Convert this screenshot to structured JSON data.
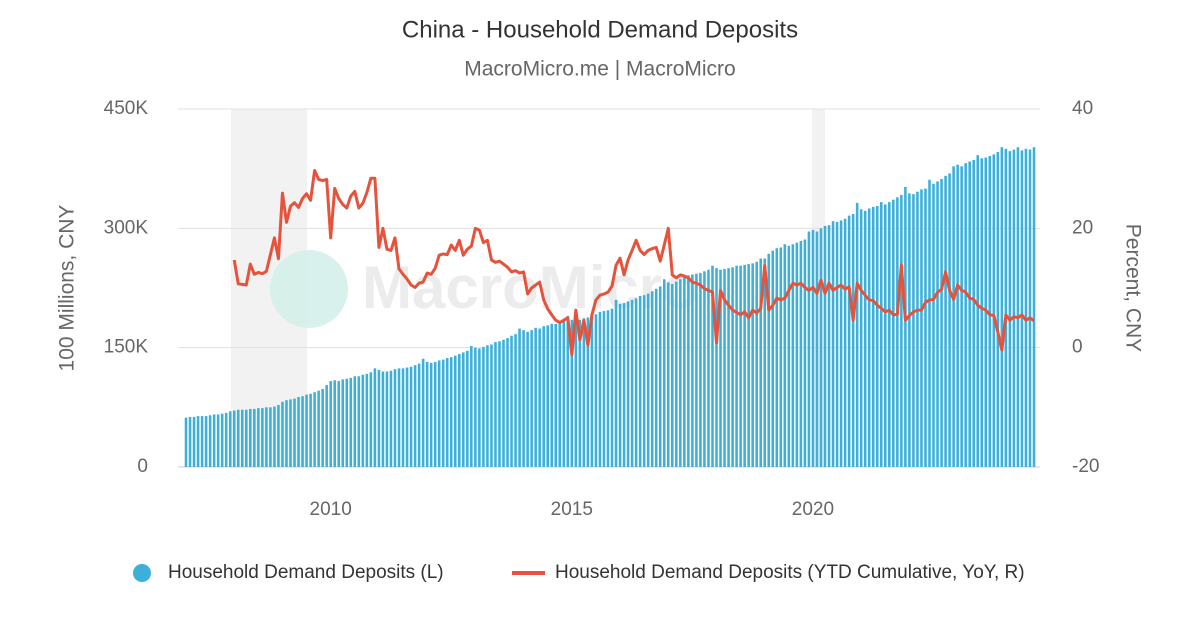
{
  "chart_data": {
    "type": "bar",
    "title": "China - Household Demand Deposits",
    "subtitle": "MacroMicro.me | MacroMicro",
    "watermark": "MacroMicro",
    "y_label": "100 Millions, CNY",
    "y2_label": "Percent, CNY",
    "ylim": [
      0,
      450000
    ],
    "yticks": [
      0,
      {
        "value": 150000,
        "label": "150K"
      },
      {
        "value": 300000,
        "label": "300K"
      },
      {
        "value": 450000,
        "label": "450K"
      }
    ],
    "y2lim": [
      -20,
      40
    ],
    "y2ticks": [
      -20,
      0,
      20,
      40
    ],
    "grid": true,
    "categories": [
      null,
      null,
      null,
      null,
      null,
      null,
      null,
      null,
      null,
      null,
      null,
      null,
      null,
      null,
      null,
      null,
      null,
      null,
      null,
      null,
      null,
      null,
      null,
      null,
      null,
      null,
      null,
      null,
      null,
      null,
      null,
      null,
      null,
      null,
      null,
      null,
      "2010",
      null,
      null,
      null,
      null,
      null,
      null,
      null,
      null,
      null,
      null,
      null,
      null,
      null,
      null,
      null,
      null,
      null,
      null,
      null,
      null,
      null,
      null,
      null,
      null,
      null,
      null,
      null,
      null,
      null,
      null,
      null,
      null,
      null,
      null,
      null,
      null,
      null,
      null,
      null,
      null,
      null,
      null,
      null,
      null,
      null,
      null,
      null,
      null,
      null,
      null,
      null,
      null,
      null,
      null,
      null,
      null,
      null,
      null,
      null,
      "2015",
      null,
      null,
      null,
      null,
      null,
      null,
      null,
      null,
      null,
      null,
      null,
      null,
      null,
      null,
      null,
      null,
      null,
      null,
      null,
      null,
      null,
      null,
      null,
      null,
      null,
      null,
      null,
      null,
      null,
      null,
      null,
      null,
      null,
      null,
      null,
      null,
      null,
      null,
      null,
      null,
      null,
      null,
      null,
      null,
      null,
      null,
      null,
      null,
      null,
      null,
      null,
      null,
      null,
      null,
      null,
      null,
      null,
      null,
      null,
      "2020",
      null,
      null,
      null,
      null,
      null,
      null,
      null,
      null,
      null,
      null,
      null,
      null,
      null,
      null,
      null,
      null,
      null,
      null,
      null,
      null,
      null,
      null,
      null,
      null,
      null,
      null,
      null,
      null,
      null,
      null,
      null,
      null,
      null,
      null,
      null,
      null,
      null,
      null,
      null,
      null,
      null,
      null,
      null,
      null,
      null,
      null,
      null,
      null,
      null,
      null,
      null,
      null,
      null,
      null,
      null
    ],
    "series": [
      {
        "name": "Household Demand Deposits (L)",
        "type": "bar",
        "axis": "y",
        "color": "#3eb0d8",
        "values": [
          62000,
          63000,
          63000,
          64000,
          64000,
          64000,
          65000,
          66000,
          66000,
          67000,
          68000,
          70000,
          71000,
          72000,
          72000,
          72000,
          73000,
          73000,
          74000,
          74000,
          75000,
          75000,
          76000,
          78000,
          82000,
          84000,
          85000,
          86000,
          88000,
          89000,
          91000,
          92000,
          94000,
          96000,
          98000,
          103000,
          108000,
          109000,
          108000,
          110000,
          111000,
          112000,
          114000,
          114000,
          116000,
          117000,
          119000,
          124000,
          122000,
          120000,
          120000,
          121000,
          123000,
          124000,
          124000,
          125000,
          126000,
          128000,
          130000,
          136000,
          132000,
          131000,
          132000,
          134000,
          135000,
          137000,
          138000,
          140000,
          142000,
          144000,
          146000,
          152000,
          150000,
          149000,
          151000,
          153000,
          154000,
          157000,
          158000,
          160000,
          162000,
          165000,
          167000,
          174000,
          172000,
          170000,
          172000,
          175000,
          174000,
          177000,
          178000,
          180000,
          180000,
          182000,
          184000,
          190000,
          185000,
          183000,
          185000,
          187000,
          188000,
          193000,
          192000,
          195000,
          196000,
          197000,
          199000,
          210000,
          205000,
          206000,
          208000,
          210000,
          212000,
          215000,
          216000,
          218000,
          221000,
          224000,
          227000,
          236000,
          232000,
          230000,
          233000,
          236000,
          238000,
          241000,
          242000,
          243000,
          244000,
          246000,
          248000,
          253000,
          250000,
          248000,
          249000,
          250000,
          251000,
          253000,
          253000,
          254000,
          255000,
          256000,
          258000,
          262000,
          262000,
          268000,
          272000,
          275000,
          276000,
          280000,
          278000,
          280000,
          282000,
          284000,
          286000,
          296000,
          298000,
          296000,
          300000,
          303000,
          304000,
          309000,
          308000,
          310000,
          312000,
          316000,
          318000,
          332000,
          324000,
          322000,
          325000,
          327000,
          328000,
          333000,
          330000,
          333000,
          336000,
          339000,
          342000,
          352000,
          344000,
          343000,
          346000,
          349000,
          350000,
          361000,
          356000,
          359000,
          362000,
          366000,
          369000,
          378000,
          380000,
          378000,
          382000,
          384000,
          386000,
          392000,
          388000,
          389000,
          391000,
          393000,
          396000,
          402000,
          400000,
          397000,
          399000,
          402000,
          398000,
          400000,
          399000,
          402000
        ]
      },
      {
        "name": "Household Demand Deposits (YTD Cumulative, YoY, R)",
        "type": "line",
        "axis": "y2",
        "color": "#e5533c",
        "values": [
          null,
          null,
          null,
          null,
          null,
          null,
          null,
          null,
          null,
          null,
          null,
          null,
          14.7,
          10.7,
          10.6,
          10.5,
          14.0,
          12.3,
          12.6,
          12.4,
          12.8,
          15.6,
          18.4,
          14.9,
          25.9,
          21.0,
          23.7,
          24.3,
          23.5,
          25.0,
          25.8,
          24.7,
          29.7,
          28.2,
          28.0,
          28.2,
          18.4,
          26.7,
          25.0,
          24.0,
          23.4,
          25.4,
          26.2,
          23.4,
          24.2,
          26.0,
          28.4,
          28.4,
          16.8,
          20.0,
          16.5,
          16.3,
          18.4,
          13.2,
          12.3,
          11.5,
          10.5,
          10.1,
          10.8,
          11.0,
          12.5,
          12.3,
          13.3,
          15.5,
          15.7,
          15.6,
          17.2,
          16.3,
          18.0,
          15.5,
          16.5,
          17.0,
          20.0,
          19.7,
          17.6,
          18.0,
          14.7,
          14.3,
          14.5,
          14.0,
          13.5,
          12.7,
          12.9,
          12.5,
          12.7,
          9.0,
          10.0,
          10.5,
          11.0,
          8.0,
          6.5,
          5.5,
          4.6,
          4.2,
          4.6,
          5.0,
          -1.2,
          6.3,
          1.3,
          4.6,
          0.4,
          5.5,
          8.0,
          8.8,
          9.0,
          9.3,
          10.3,
          13.8,
          15.0,
          12.2,
          14.7,
          16.3,
          18.0,
          16.3,
          15.6,
          16.3,
          16.6,
          16.8,
          14.5,
          17.2,
          20.0,
          12.2,
          11.7,
          12.2,
          12.0,
          11.7,
          11.0,
          10.8,
          10.5,
          9.9,
          9.6,
          9.3,
          0.8,
          9.6,
          8.0,
          7.1,
          6.3,
          5.9,
          5.5,
          6.0,
          5.0,
          6.3,
          5.8,
          6.6,
          13.8,
          6.3,
          7.1,
          8.3,
          8.0,
          8.3,
          9.6,
          10.8,
          10.5,
          10.8,
          10.1,
          9.6,
          10.1,
          9.1,
          11.3,
          9.1,
          10.8,
          9.6,
          10.1,
          10.5,
          9.8,
          10.2,
          4.6,
          10.8,
          9.6,
          8.8,
          8.0,
          7.9,
          7.1,
          6.6,
          6.0,
          6.3,
          5.5,
          5.6,
          13.9,
          4.6,
          5.4,
          6.0,
          6.3,
          6.3,
          7.6,
          8.0,
          8.1,
          9.3,
          9.8,
          12.7,
          9.6,
          8.1,
          10.5,
          9.6,
          9.3,
          8.3,
          8.1,
          7.1,
          6.6,
          6.3,
          5.5,
          5.4,
          2.6,
          -0.4,
          5.5,
          4.6,
          5.2,
          5.0,
          5.5,
          4.6,
          5.0,
          4.5
        ]
      }
    ]
  }
}
